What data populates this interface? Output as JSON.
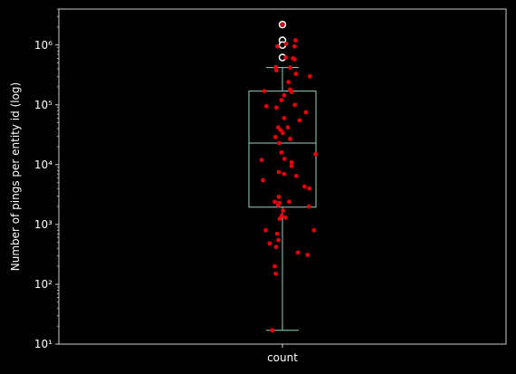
{
  "colors": {
    "background": "#000000",
    "axes": "#ffffff",
    "box": "#8fd3c6",
    "points": "#e8000b",
    "outlier_fill": "#000000",
    "outlier_edge": "#ffffff"
  },
  "chart_data": {
    "type": "box",
    "title": "",
    "xlabel": "",
    "ylabel": "Number of pings per entity id (log)",
    "yscale": "log",
    "ylim": [
      10,
      4000000
    ],
    "categories": [
      "count"
    ],
    "y_ticks": [
      {
        "value": 10,
        "label": "10¹"
      },
      {
        "value": 100,
        "label": "10²"
      },
      {
        "value": 1000,
        "label": "10³"
      },
      {
        "value": 10000,
        "label": "10⁴"
      },
      {
        "value": 100000,
        "label": "10⁵"
      },
      {
        "value": 1000000,
        "label": "10⁶"
      }
    ],
    "box": {
      "whisker_low": 17,
      "q1": 1950,
      "median": 23000,
      "q3": 170000,
      "whisker_high": 420000,
      "outliers": [
        2200000,
        1200000,
        1000000,
        620000
      ]
    },
    "jitter_points": [
      {
        "offset": 0.0,
        "y": 2200000
      },
      {
        "offset": 0.39,
        "y": 1200000
      },
      {
        "offset": -0.15,
        "y": 950000
      },
      {
        "offset": 0.36,
        "y": 950000
      },
      {
        "offset": 0.11,
        "y": 1050000
      },
      {
        "offset": 0.1,
        "y": 620000
      },
      {
        "offset": 0.31,
        "y": 600000
      },
      {
        "offset": 0.36,
        "y": 580000
      },
      {
        "offset": -0.2,
        "y": 430000
      },
      {
        "offset": -0.18,
        "y": 380000
      },
      {
        "offset": 0.23,
        "y": 420000
      },
      {
        "offset": 0.4,
        "y": 330000
      },
      {
        "offset": 0.82,
        "y": 300000
      },
      {
        "offset": -0.54,
        "y": 170000
      },
      {
        "offset": 0.18,
        "y": 240000
      },
      {
        "offset": 0.23,
        "y": 180000
      },
      {
        "offset": 0.27,
        "y": 165000
      },
      {
        "offset": 0.05,
        "y": 145000
      },
      {
        "offset": -0.03,
        "y": 120000
      },
      {
        "offset": -0.48,
        "y": 95000
      },
      {
        "offset": -0.18,
        "y": 90000
      },
      {
        "offset": 0.37,
        "y": 100000
      },
      {
        "offset": 0.7,
        "y": 75000
      },
      {
        "offset": 0.05,
        "y": 60000
      },
      {
        "offset": 0.51,
        "y": 55000
      },
      {
        "offset": -0.13,
        "y": 42000
      },
      {
        "offset": -0.06,
        "y": 38000
      },
      {
        "offset": 0.16,
        "y": 42000
      },
      {
        "offset": -0.21,
        "y": 29000
      },
      {
        "offset": 0.01,
        "y": 34000
      },
      {
        "offset": 0.23,
        "y": 27000
      },
      {
        "offset": -0.1,
        "y": 23000
      },
      {
        "offset": -0.03,
        "y": 16000
      },
      {
        "offset": 0.06,
        "y": 12500
      },
      {
        "offset": 0.99,
        "y": 15000
      },
      {
        "offset": -0.62,
        "y": 12000
      },
      {
        "offset": 0.27,
        "y": 11000
      },
      {
        "offset": 0.27,
        "y": 9500
      },
      {
        "offset": -0.11,
        "y": 7500
      },
      {
        "offset": 0.05,
        "y": 7000
      },
      {
        "offset": -0.58,
        "y": 5500
      },
      {
        "offset": 0.41,
        "y": 6500
      },
      {
        "offset": 0.66,
        "y": 4300
      },
      {
        "offset": 0.8,
        "y": 4000
      },
      {
        "offset": -0.11,
        "y": 2900
      },
      {
        "offset": -0.23,
        "y": 2400
      },
      {
        "offset": -0.09,
        "y": 2300
      },
      {
        "offset": -0.13,
        "y": 2100
      },
      {
        "offset": 0.2,
        "y": 2400
      },
      {
        "offset": 0.79,
        "y": 2000
      },
      {
        "offset": 0.02,
        "y": 1700
      },
      {
        "offset": -0.02,
        "y": 1400
      },
      {
        "offset": 0.09,
        "y": 1300
      },
      {
        "offset": -0.08,
        "y": 1250
      },
      {
        "offset": -0.5,
        "y": 800
      },
      {
        "offset": 0.94,
        "y": 800
      },
      {
        "offset": -0.16,
        "y": 700
      },
      {
        "offset": -0.12,
        "y": 550
      },
      {
        "offset": -0.38,
        "y": 480
      },
      {
        "offset": -0.19,
        "y": 420
      },
      {
        "offset": 0.46,
        "y": 340
      },
      {
        "offset": 0.75,
        "y": 310
      },
      {
        "offset": -0.23,
        "y": 200
      },
      {
        "offset": -0.2,
        "y": 150
      },
      {
        "offset": -0.3,
        "y": 17
      }
    ]
  }
}
